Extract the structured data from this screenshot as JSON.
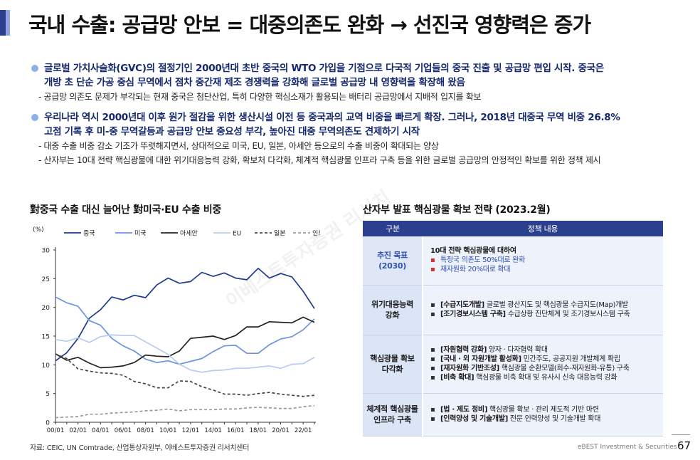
{
  "header": {
    "title": "국내 수출: 공급망 안보 = 대중의존도 완화 → 선진국 영향력은 증가"
  },
  "bullets": [
    {
      "main": [
        "글로벌 가치사슬화(GVC)의 절정기인 2000년대 초반 중국의 WTO 가입을 기점으로 다국적 기업들의 중국 진출 및 공급망 편입 시작. 중국은",
        "개방 초 단순 가공 중심 무역에서 점차 중간재 제조 경쟁력을 강화해 글로벌 공급망 내 영향력을 확장해 왔음"
      ],
      "subs": [
        "- 공급망 의존도 문제가 부각되는 현재 중국은 첨단산업, 특히 다양한 핵심소재가 활용되는 배터리 공급망에서 지배적 입지를 확보"
      ]
    },
    {
      "main": [
        "우리나라 역시 2000년대 이후 원가 절감을 위한 생산시설 이전 등 중국과의 교역 비중을 빠르게 확장. 그러나, 2018년 대중국 무역 비중 26.8%",
        "고점 기록 후 미-중 무역갈등과 공급망 안보 중요성 부각, 높아진 대중 무역의존도 견제하기 시작"
      ],
      "subs": [
        "- 대중 수출 비중 감소 기조가 뚜렷해지면서, 상대적으로 미국, EU, 일본, 아세안 등으로의 수출 비중이 확대되는 양상",
        "- 산자부는 10대 전략 핵심광물에 대한 위기대응능력 강화, 확보처 다각화, 체계적 핵심광물 인프라 구축 등을 위한 글로벌 공급망의 안정적인 확보를 위한 정책 제시"
      ]
    }
  ],
  "chart_title": "對중국 수출 대신 늘어난 對미국·EU 수출 비중",
  "table_title": "산자부 발표 핵심광물 확보 전략 (2023.2월)",
  "table": {
    "headers": [
      "구분",
      "정책 내용"
    ],
    "rows": [
      {
        "category": [
          "추진 목표",
          "(2030)"
        ],
        "lead": "10대 전략 핵심광물에 대하여",
        "items": [
          {
            "bold": "",
            "text": "특정국 의존도 50%대로 완화",
            "red": true
          },
          {
            "bold": "",
            "text": "재자원화 20%대로 확대",
            "red": true
          }
        ]
      },
      {
        "category": [
          "위기대응능력",
          "강화"
        ],
        "lead": "",
        "items": [
          {
            "bold": "[수급지도개발]",
            "text": " 글로벌 광산지도 및 핵심광물 수급지도(Map)개발",
            "red": false
          },
          {
            "bold": "[조기경보시스템 구축]",
            "text": " 수급상황 진단체계 및 조기경보시스템 구축",
            "red": false
          }
        ]
      },
      {
        "category": [
          "핵심광물 확보",
          "다각화"
        ],
        "lead": "",
        "items": [
          {
            "bold": "[자원협력 강화]",
            "text": " 양자 · 다자협력 확대",
            "red": false
          },
          {
            "bold": "[국내 · 외 자원개발 활성화]",
            "text": " 민간주도, 공공지원 개발체계 확립",
            "red": false
          },
          {
            "bold": "[재자원화 기반조성]",
            "text": " 핵심광물 순환모델(회수-재자원화-유통) 구축",
            "red": false
          },
          {
            "bold": "[비축 확대]",
            "text": " 핵심광물 비축 확대 및 유사시 신속 대응능력 강화",
            "red": false
          }
        ]
      },
      {
        "category": [
          "체계적 핵심광물",
          "인프라 구축"
        ],
        "lead": "",
        "items": [
          {
            "bold": "[법 · 제도 정비]",
            "text": " 핵심광물 확보 · 관리 제도적 기반 마련",
            "red": false
          },
          {
            "bold": "[인력양성 및 기술개발]",
            "text": " 전문 인력양성 및 기술개발 확대",
            "red": false
          }
        ]
      }
    ]
  },
  "source": "자료: CEIC, UN Comtrade, 산업통상자원부, 이베스트투자증권 리서치센터",
  "footer": {
    "brand": "eBEST Investment & Securities",
    "page": "67"
  },
  "watermark": "이베스트투자증권 리서치",
  "chart_data": {
    "type": "line",
    "title": "對중국 수출 대신 늘어난 對미국·EU 수출 비중",
    "ylabel": "(%)",
    "ylim": [
      0,
      30
    ],
    "yticks": [
      0,
      5,
      10,
      15,
      20,
      25,
      30
    ],
    "x": [
      "00/01",
      "01/01",
      "02/01",
      "03/01",
      "04/01",
      "05/01",
      "06/01",
      "07/01",
      "08/01",
      "09/01",
      "10/01",
      "11/01",
      "12/01",
      "13/01",
      "14/01",
      "15/01",
      "16/01",
      "17/01",
      "18/01",
      "19/01",
      "20/01",
      "21/01",
      "22/01",
      "23/01"
    ],
    "xtick_labels": [
      "00/01",
      "02/01",
      "04/01",
      "06/01",
      "08/01",
      "10/01",
      "12/01",
      "14/01",
      "16/01",
      "18/01",
      "20/01",
      "22/01"
    ],
    "grid": false,
    "legend": "top",
    "series": [
      {
        "name": "중국",
        "color": "#1f3b8f",
        "dash": "solid",
        "values": [
          10.7,
          12.1,
          14.6,
          18.1,
          19.6,
          21.8,
          21.3,
          22.1,
          21.7,
          23.9,
          25.1,
          24.2,
          24.5,
          26.1,
          25.4,
          26.0,
          25.1,
          24.8,
          26.8,
          25.1,
          25.9,
          25.3,
          22.8,
          19.8
        ]
      },
      {
        "name": "미국",
        "color": "#6d93e0",
        "dash": "solid",
        "values": [
          21.8,
          20.8,
          20.2,
          17.7,
          16.9,
          14.6,
          13.3,
          12.4,
          11.0,
          10.4,
          10.7,
          10.1,
          10.6,
          11.1,
          12.3,
          13.3,
          13.4,
          12.0,
          12.0,
          13.5,
          14.5,
          14.9,
          16.1,
          18.0
        ]
      },
      {
        "name": "아세안",
        "color": "#222222",
        "dash": "solid",
        "values": [
          11.9,
          10.8,
          11.3,
          10.3,
          9.5,
          9.6,
          9.8,
          10.4,
          11.7,
          11.5,
          11.4,
          12.4,
          14.6,
          14.8,
          15.0,
          14.4,
          15.1,
          16.6,
          16.6,
          17.5,
          17.4,
          17.3,
          18.3,
          17.4
        ]
      },
      {
        "name": "EU",
        "color": "#b7cbf0",
        "dash": "solid",
        "values": [
          14.4,
          14.1,
          14.7,
          13.9,
          14.9,
          15.2,
          15.1,
          15.1,
          14.0,
          12.9,
          11.8,
          10.1,
          9.1,
          8.7,
          9.0,
          9.1,
          9.4,
          9.4,
          9.6,
          9.8,
          9.4,
          10.1,
          10.2,
          11.3
        ]
      },
      {
        "name": "일본",
        "color": "#444444",
        "dash": "4,3",
        "values": [
          11.9,
          11.1,
          9.3,
          8.9,
          8.6,
          8.5,
          8.2,
          7.1,
          6.7,
          6.0,
          6.0,
          7.2,
          7.1,
          6.2,
          5.6,
          4.9,
          4.9,
          4.7,
          5.0,
          5.2,
          4.9,
          4.7,
          4.5,
          4.7
        ]
      },
      {
        "name": "인도",
        "color": "#999999",
        "dash": "4,3",
        "values": [
          0.8,
          0.9,
          1.0,
          1.4,
          1.4,
          1.6,
          1.7,
          1.8,
          2.0,
          2.1,
          2.3,
          2.0,
          2.2,
          2.2,
          2.2,
          2.3,
          2.3,
          2.5,
          2.6,
          2.5,
          2.4,
          2.4,
          2.7,
          2.9
        ]
      }
    ]
  }
}
